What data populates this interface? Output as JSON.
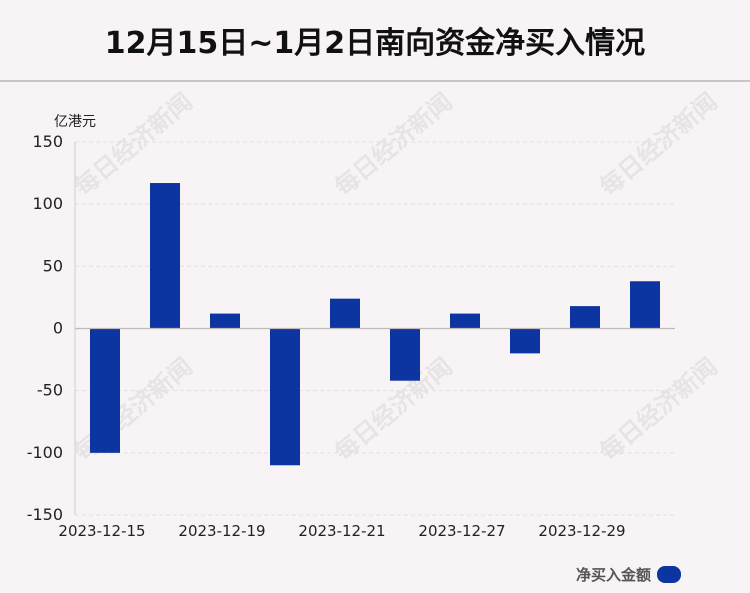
{
  "page_title": "12月15日~1月2日南向资金净买入情况",
  "unit_label": "亿港元",
  "watermark_text": "每日经济新闻",
  "legend_label": "净买入金额",
  "bar_color": "#0c35a1",
  "chart_data": {
    "type": "bar",
    "title": "12月15日~1月2日南向资金净买入情况",
    "ylabel": "亿港元",
    "ylim": [
      -150,
      150
    ],
    "yticks": [
      150,
      100,
      50,
      0,
      -50,
      -100,
      -150
    ],
    "xtick_labels": [
      "2023-12-15",
      "2023-12-19",
      "2023-12-21",
      "2023-12-27",
      "2023-12-29"
    ],
    "series": [
      {
        "name": "净买入金额",
        "values": [
          -100,
          117,
          12,
          -110,
          24,
          -42,
          12,
          -20,
          18,
          38
        ]
      }
    ],
    "grid": true,
    "legend": "bottom-right"
  }
}
